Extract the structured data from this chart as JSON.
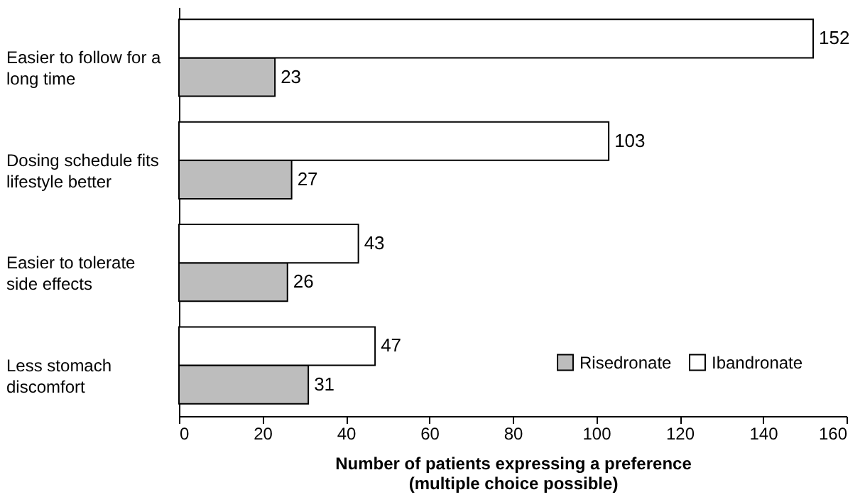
{
  "chart_data": {
    "type": "bar",
    "orientation": "horizontal",
    "categories": [
      "Easier to follow for a long time",
      "Dosing schedule fits lifestyle better",
      "Easier to tolerate side effects",
      "Less stomach discomfort"
    ],
    "series": [
      {
        "name": "Risedronate",
        "color": "#bdbdbd",
        "values": [
          23,
          27,
          26,
          31
        ]
      },
      {
        "name": "Ibandronate",
        "color": "#ffffff",
        "values": [
          152,
          103,
          43,
          47
        ]
      }
    ],
    "xlabel": "Number of patients expressing a preference (multiple choice possible)",
    "xlim": [
      0,
      160
    ],
    "xticks": [
      0,
      20,
      40,
      60,
      80,
      100,
      120,
      140,
      160
    ],
    "data_labels": true,
    "legend": "bottom right",
    "grid": false
  }
}
